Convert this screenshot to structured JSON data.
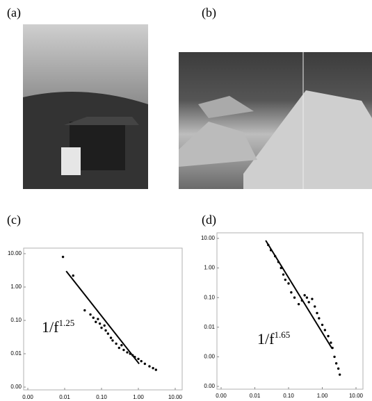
{
  "panel_labels": [
    "(a)",
    "(b)"
  ],
  "chart_data": [
    {
      "type": "scatter",
      "panel_label": "(c)",
      "log_x": true,
      "log_y": true,
      "color": "#000000",
      "xlim": [
        0.001,
        10
      ],
      "ylim": [
        0.001,
        10
      ],
      "xticks": [
        {
          "value": 0.001,
          "label": "0.00"
        },
        0.01,
        {
          "value": 0.1,
          "label": "0.10"
        },
        {
          "value": 1,
          "label": "1.00"
        },
        {
          "value": 10,
          "label": "10.00"
        }
      ],
      "yticks": [
        {
          "value": 0.001,
          "label": "0.00"
        },
        0.01,
        {
          "value": 0.1,
          "label": "0.10"
        },
        {
          "value": 1,
          "label": "1.00"
        },
        {
          "value": 10,
          "label": "10.00"
        }
      ],
      "x": [
        0.009,
        0.017,
        0.035,
        0.05,
        0.06,
        0.07,
        0.08,
        0.09,
        0.1,
        0.12,
        0.13,
        0.15,
        0.18,
        0.2,
        0.25,
        0.3,
        0.35,
        0.4,
        0.5,
        0.6,
        0.7,
        0.8,
        1.0,
        1.2,
        1.5,
        2.0,
        2.5,
        3.0
      ],
      "values": [
        8,
        2.2,
        0.2,
        0.15,
        0.12,
        0.09,
        0.11,
        0.08,
        0.06,
        0.07,
        0.05,
        0.04,
        0.03,
        0.025,
        0.02,
        0.015,
        0.018,
        0.013,
        0.011,
        0.01,
        0.009,
        0.008,
        0.007,
        0.006,
        0.005,
        0.0042,
        0.0037,
        0.0033
      ],
      "fit_x": [
        0.011,
        1.05
      ],
      "fit_values": [
        3,
        0.005
      ],
      "annotation": {
        "base": "1/f",
        "exponent": "1.25"
      }
    },
    {
      "type": "scatter",
      "panel_label": "(d)",
      "log_x": true,
      "log_y": true,
      "color": "#000000",
      "xlim": [
        0.001,
        10
      ],
      "ylim": [
        0.0001,
        10
      ],
      "xticks": [
        {
          "value": 0.001,
          "label": "0.00"
        },
        0.01,
        {
          "value": 0.1,
          "label": "0.10"
        },
        {
          "value": 1,
          "label": "1.00"
        },
        {
          "value": 10,
          "label": "10.00"
        }
      ],
      "yticks": [
        {
          "value": 0.0001,
          "label": "0.00"
        },
        {
          "value": 0.001,
          "label": "0.00"
        },
        0.01,
        {
          "value": 0.1,
          "label": "0.10"
        },
        {
          "value": 1,
          "label": "1.00"
        },
        {
          "value": 10,
          "label": "10.00"
        }
      ],
      "x": [
        0.025,
        0.03,
        0.04,
        0.05,
        0.06,
        0.07,
        0.08,
        0.1,
        0.12,
        0.15,
        0.2,
        0.25,
        0.3,
        0.35,
        0.4,
        0.5,
        0.6,
        0.7,
        0.8,
        1.0,
        1.2,
        1.5,
        1.8,
        2.0,
        2.3,
        2.6,
        3.0,
        3.3
      ],
      "values": [
        6,
        4,
        2.5,
        1.6,
        1.0,
        0.6,
        0.4,
        0.3,
        0.15,
        0.1,
        0.06,
        0.08,
        0.12,
        0.1,
        0.07,
        0.09,
        0.05,
        0.03,
        0.02,
        0.012,
        0.008,
        0.005,
        0.003,
        0.002,
        0.001,
        0.0006,
        0.0004,
        0.00025
      ],
      "fit_x": [
        0.021,
        1.95
      ],
      "fit_values": [
        8.5,
        0.0019
      ],
      "annotation": {
        "base": "1/f",
        "exponent": "1.65"
      }
    }
  ]
}
